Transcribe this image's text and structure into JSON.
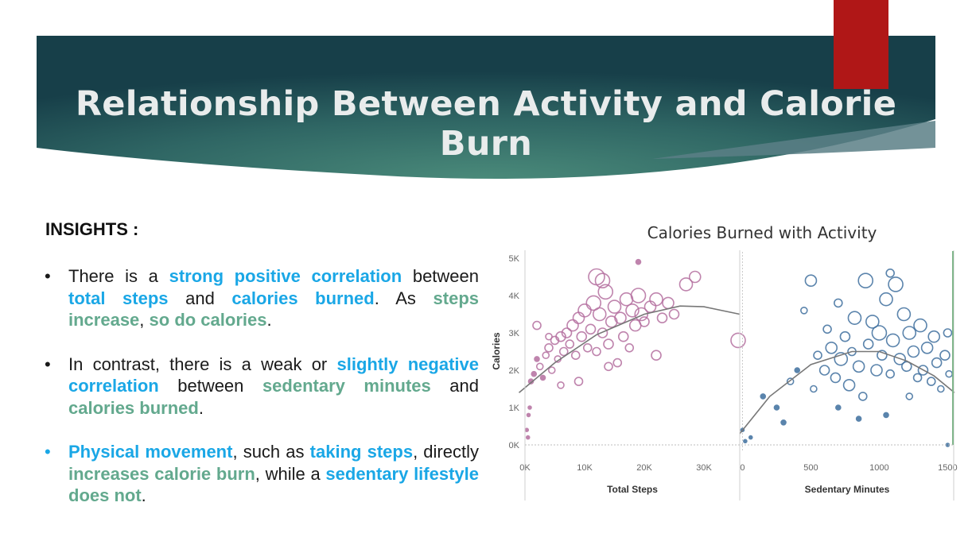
{
  "slide": {
    "title": "Relationship Between Activity and Calorie Burn",
    "colors": {
      "banner_dark": "#18434a",
      "banner_mid": "#3e7b6d",
      "accent_red": "#b01717",
      "highlight_blue": "#1aa7e6",
      "highlight_green": "#63a98e"
    }
  },
  "insights": {
    "heading": "INSIGHTS :",
    "bullet_glyph": "•",
    "b1": {
      "t1": "There is a ",
      "h1": "strong positive correlation",
      "t2": " between ",
      "h2": "total steps",
      "t3": " and ",
      "h3": "calories burned",
      "t4": ". As ",
      "h4": "steps increase",
      "t5": ", ",
      "h5": "so do calories",
      "t6": "."
    },
    "b2": {
      "t1": "In contrast, there is a weak or ",
      "h1": "slightly negative correlation",
      "t2": " between ",
      "h2": "sedentary minutes",
      "t3": " and ",
      "h3": "calories burned",
      "t4": "."
    },
    "b3": {
      "h1": "Physical movement",
      "t1": ", such as ",
      "h2": "taking steps",
      "t2": ", directly ",
      "h3": "increases calorie burn",
      "t3": ", while a ",
      "h4": "sedentary lifestyle",
      "h5": "does not",
      "t4": "."
    }
  },
  "chart_data": {
    "type": "scatter",
    "title": "Calories Burned with Activity",
    "ylabel": "Calories",
    "ylim": [
      0,
      5000
    ],
    "y_ticks": [
      "0K",
      "1K",
      "2K",
      "3K",
      "4K",
      "5K"
    ],
    "grid": false,
    "panels": [
      {
        "xlabel": "Total Steps",
        "xlim": [
          0,
          36000
        ],
        "x_ticks": [
          "0K",
          "10K",
          "20K",
          "30K"
        ],
        "x_tick_values": [
          0,
          10000,
          20000,
          30000
        ],
        "color": "#b46f9f",
        "trend": [
          [
            -1000,
            1400
          ],
          [
            5000,
            2200
          ],
          [
            12000,
            2950
          ],
          [
            20000,
            3500
          ],
          [
            26000,
            3720
          ],
          [
            30000,
            3700
          ],
          [
            36000,
            3500
          ]
        ],
        "points": [
          [
            500,
            200
          ],
          [
            300,
            400
          ],
          [
            600,
            800
          ],
          [
            800,
            1000
          ],
          [
            1000,
            1700
          ],
          [
            1500,
            1900
          ],
          [
            2000,
            2300
          ],
          [
            2500,
            2100
          ],
          [
            3000,
            1800
          ],
          [
            3500,
            2400
          ],
          [
            4000,
            2600
          ],
          [
            4500,
            2000
          ],
          [
            5000,
            2800
          ],
          [
            5500,
            2300
          ],
          [
            6000,
            2900
          ],
          [
            6500,
            2500
          ],
          [
            7000,
            3000
          ],
          [
            7500,
            2700
          ],
          [
            8000,
            3200
          ],
          [
            8500,
            2400
          ],
          [
            9000,
            3400
          ],
          [
            9500,
            2900
          ],
          [
            10000,
            3600
          ],
          [
            10500,
            2600
          ],
          [
            11000,
            3100
          ],
          [
            11500,
            3800
          ],
          [
            12000,
            2500
          ],
          [
            12500,
            3500
          ],
          [
            13000,
            3000
          ],
          [
            13500,
            4100
          ],
          [
            14000,
            2700
          ],
          [
            14500,
            3300
          ],
          [
            15000,
            3700
          ],
          [
            15500,
            2200
          ],
          [
            16000,
            3400
          ],
          [
            16500,
            2900
          ],
          [
            17000,
            3900
          ],
          [
            17500,
            2600
          ],
          [
            18000,
            3600
          ],
          [
            18500,
            3200
          ],
          [
            19000,
            4000
          ],
          [
            19500,
            3500
          ],
          [
            20000,
            3300
          ],
          [
            21000,
            3700
          ],
          [
            22000,
            3900
          ],
          [
            23000,
            3400
          ],
          [
            24000,
            3800
          ],
          [
            25000,
            3500
          ],
          [
            12000,
            4500
          ],
          [
            13000,
            4400
          ],
          [
            27000,
            4300
          ],
          [
            28500,
            4500
          ],
          [
            36000,
            2800
          ],
          [
            19000,
            4900
          ],
          [
            2000,
            3200
          ],
          [
            4000,
            2900
          ],
          [
            22000,
            2400
          ],
          [
            6000,
            1600
          ],
          [
            9000,
            1700
          ],
          [
            14000,
            2100
          ]
        ],
        "sizes": [
          2,
          2,
          2,
          2,
          3,
          3,
          3,
          4,
          3,
          4,
          5,
          4,
          5,
          4,
          6,
          5,
          6,
          5,
          7,
          5,
          7,
          6,
          8,
          5,
          6,
          9,
          5,
          8,
          6,
          9,
          6,
          7,
          8,
          5,
          7,
          6,
          8,
          5,
          8,
          7,
          9,
          8,
          6,
          7,
          8,
          6,
          7,
          6,
          10,
          9,
          8,
          7,
          9,
          3,
          5,
          4,
          6,
          4,
          5,
          5
        ]
      },
      {
        "xlabel": "Sedentary Minutes",
        "xlim": [
          -20,
          1550
        ],
        "x_ticks": [
          "0",
          "500",
          "1000",
          "1500"
        ],
        "x_tick_values": [
          0,
          500,
          1000,
          1500
        ],
        "color": "#3e6f9e",
        "trend": [
          [
            -20,
            300
          ],
          [
            200,
            1300
          ],
          [
            500,
            2150
          ],
          [
            800,
            2500
          ],
          [
            1000,
            2500
          ],
          [
            1200,
            2250
          ],
          [
            1400,
            1850
          ],
          [
            1550,
            1400
          ]
        ],
        "points": [
          [
            0,
            400
          ],
          [
            20,
            100
          ],
          [
            60,
            200
          ],
          [
            150,
            1300
          ],
          [
            250,
            1000
          ],
          [
            300,
            600
          ],
          [
            350,
            1700
          ],
          [
            400,
            2000
          ],
          [
            450,
            3600
          ],
          [
            500,
            4400
          ],
          [
            520,
            1500
          ],
          [
            550,
            2400
          ],
          [
            600,
            2000
          ],
          [
            620,
            3100
          ],
          [
            650,
            2600
          ],
          [
            680,
            1800
          ],
          [
            700,
            3800
          ],
          [
            720,
            2300
          ],
          [
            750,
            2900
          ],
          [
            780,
            1600
          ],
          [
            800,
            2500
          ],
          [
            820,
            3400
          ],
          [
            850,
            2100
          ],
          [
            880,
            1300
          ],
          [
            900,
            4400
          ],
          [
            920,
            2700
          ],
          [
            950,
            3300
          ],
          [
            980,
            2000
          ],
          [
            1000,
            3000
          ],
          [
            1020,
            2400
          ],
          [
            1050,
            3900
          ],
          [
            1080,
            1900
          ],
          [
            1100,
            2800
          ],
          [
            1120,
            4300
          ],
          [
            1150,
            2300
          ],
          [
            1180,
            3500
          ],
          [
            1200,
            2100
          ],
          [
            1220,
            3000
          ],
          [
            1250,
            2500
          ],
          [
            1280,
            1800
          ],
          [
            1300,
            3200
          ],
          [
            1320,
            2000
          ],
          [
            1350,
            2600
          ],
          [
            1380,
            1700
          ],
          [
            1400,
            2900
          ],
          [
            1420,
            2200
          ],
          [
            1450,
            1500
          ],
          [
            1480,
            2400
          ],
          [
            1500,
            3000
          ],
          [
            1510,
            1900
          ],
          [
            1500,
            0
          ],
          [
            1220,
            1300
          ],
          [
            1050,
            800
          ],
          [
            850,
            700
          ],
          [
            700,
            1000
          ],
          [
            1080,
            4600
          ]
        ],
        "sizes": [
          2,
          2,
          2,
          3,
          3,
          3,
          4,
          3,
          4,
          7,
          4,
          5,
          6,
          5,
          7,
          6,
          5,
          8,
          6,
          7,
          5,
          8,
          7,
          5,
          9,
          6,
          8,
          7,
          9,
          6,
          8,
          5,
          8,
          9,
          7,
          8,
          6,
          8,
          7,
          5,
          8,
          6,
          7,
          5,
          7,
          6,
          4,
          6,
          5,
          4,
          2,
          4,
          3,
          3,
          3,
          5
        ]
      }
    ]
  }
}
